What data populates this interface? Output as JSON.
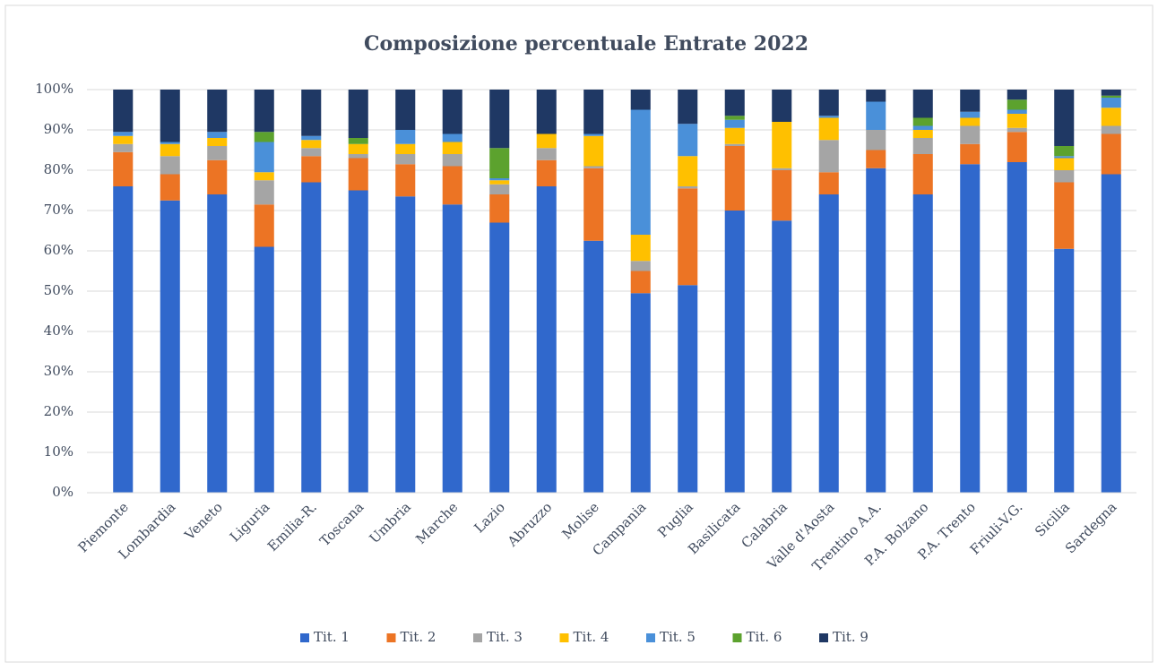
{
  "chart_data": {
    "type": "stacked_bar",
    "title": "Composizione percentuale Entrate 2022",
    "categories": [
      "Piemonte",
      "Lombardia",
      "Veneto",
      "Liguria",
      "Emilia-R.",
      "Toscana",
      "Umbria",
      "Marche",
      "Lazio",
      "Abruzzo",
      "Molise",
      "Campania",
      "Puglia",
      "Basilicata",
      "Calabria",
      "Valle d'Aosta",
      "Trentino A.A.",
      "P.A. Bolzano",
      "P.A. Trento",
      "Friuli-V.G.",
      "Sicilia",
      "Sardegna"
    ],
    "series": [
      {
        "name": "Tit. 1",
        "color": "#3068cc",
        "values": [
          76,
          72.5,
          74,
          61,
          77,
          75,
          73.5,
          71.5,
          67,
          76,
          62.5,
          49.5,
          51.5,
          70,
          67.5,
          74,
          80.5,
          74,
          81.5,
          82,
          60.5,
          79
        ]
      },
      {
        "name": "Tit. 2",
        "color": "#ec7424",
        "values": [
          8.5,
          6.5,
          8.5,
          10.5,
          6.5,
          8,
          8,
          9.5,
          7,
          6.5,
          18,
          5.5,
          24,
          16,
          12.5,
          5.5,
          4.5,
          10,
          5,
          7.5,
          16.5,
          10
        ]
      },
      {
        "name": "Tit. 3",
        "color": "#a5a5a5",
        "values": [
          2,
          4.5,
          3.5,
          6,
          2,
          1,
          2.5,
          3,
          2.5,
          3,
          0.5,
          2.5,
          0.5,
          0.5,
          0.5,
          8,
          5,
          4,
          4.5,
          1,
          3,
          2
        ]
      },
      {
        "name": "Tit. 4",
        "color": "#ffc000",
        "values": [
          2,
          3,
          2,
          2,
          2,
          2.5,
          2.5,
          3,
          1,
          3.5,
          7.5,
          6.5,
          7.5,
          4,
          11.5,
          5.5,
          0,
          2,
          2,
          3.5,
          3,
          4.5
        ]
      },
      {
        "name": "Tit. 5",
        "color": "#4a90d9",
        "values": [
          1,
          0.5,
          1.5,
          7.5,
          1,
          0,
          3.5,
          2,
          0.5,
          0,
          0.5,
          31,
          8,
          2,
          0,
          0.5,
          7,
          1,
          1.5,
          1,
          0.5,
          2.5
        ]
      },
      {
        "name": "Tit. 6",
        "color": "#5ca22e",
        "values": [
          0,
          0,
          0,
          2.5,
          0,
          1.5,
          0,
          0,
          7.5,
          0,
          0,
          0,
          0,
          1,
          0,
          0,
          0,
          2,
          0,
          2.5,
          2.5,
          0.5
        ]
      },
      {
        "name": "Tit. 9",
        "color": "#1f3864",
        "values": [
          10.5,
          13,
          10.5,
          10.5,
          11.5,
          12,
          10,
          11,
          14.5,
          11,
          11,
          5,
          8.5,
          6.5,
          8,
          6.5,
          3,
          7,
          5.5,
          2.5,
          14,
          1.5
        ]
      }
    ],
    "ylim": [
      0,
      100
    ],
    "yticks": [
      {
        "value": 0,
        "label": "0%"
      },
      {
        "value": 10,
        "label": "10%"
      },
      {
        "value": 20,
        "label": "20%"
      },
      {
        "value": 30,
        "label": "30%"
      },
      {
        "value": 40,
        "label": "40%"
      },
      {
        "value": 50,
        "label": "50%"
      },
      {
        "value": 60,
        "label": "60%"
      },
      {
        "value": 70,
        "label": "70%"
      },
      {
        "value": 80,
        "label": "80%"
      },
      {
        "value": 90,
        "label": "90%"
      },
      {
        "value": 100,
        "label": "100%"
      }
    ],
    "grid": true,
    "legend": "bottom"
  }
}
